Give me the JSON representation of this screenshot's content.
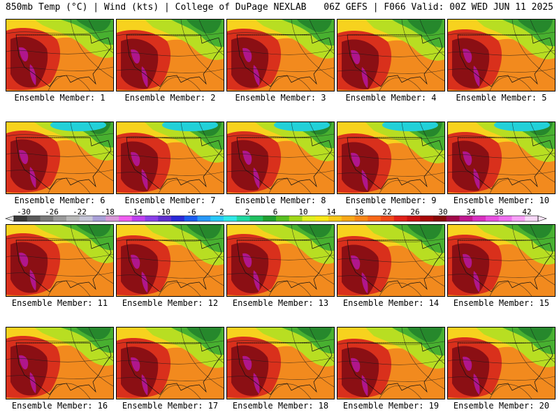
{
  "header": {
    "left": "850mb Temp (°C) | Wind (kts) | College of DuPage NEXLAB",
    "right": "06Z GEFS | F066 Valid: 00Z WED JUN 11 2025"
  },
  "members": [
    {
      "label": "Ensemble Member: 1"
    },
    {
      "label": "Ensemble Member: 2"
    },
    {
      "label": "Ensemble Member: 3"
    },
    {
      "label": "Ensemble Member: 4"
    },
    {
      "label": "Ensemble Member: 5"
    },
    {
      "label": "Ensemble Member: 6"
    },
    {
      "label": "Ensemble Member: 7"
    },
    {
      "label": "Ensemble Member: 8"
    },
    {
      "label": "Ensemble Member: 9"
    },
    {
      "label": "Ensemble Member: 10"
    },
    {
      "label": "Ensemble Member: 11"
    },
    {
      "label": "Ensemble Member: 12"
    },
    {
      "label": "Ensemble Member: 13"
    },
    {
      "label": "Ensemble Member: 14"
    },
    {
      "label": "Ensemble Member: 15"
    },
    {
      "label": "Ensemble Member: 16"
    },
    {
      "label": "Ensemble Member: 17"
    },
    {
      "label": "Ensemble Member: 18"
    },
    {
      "label": "Ensemble Member: 19"
    },
    {
      "label": "Ensemble Member: 20"
    }
  ],
  "colorbar": {
    "labels": [
      "-30",
      "-26",
      "-22",
      "-18",
      "-14",
      "-10",
      "-6",
      "-2",
      "2",
      "6",
      "10",
      "14",
      "18",
      "22",
      "26",
      "30",
      "34",
      "38",
      "42"
    ],
    "colors": [
      "#3a3a3a",
      "#5a5a5a",
      "#7a7a7a",
      "#9a9a9a",
      "#b8b8b8",
      "#c6c6d8",
      "#a9a0d8",
      "#d89ad8",
      "#f05ef0",
      "#c040f0",
      "#8a40e8",
      "#6030d0",
      "#2a2ad8",
      "#1a5cf0",
      "#2898f8",
      "#28c8f8",
      "#30e8e8",
      "#20d8a0",
      "#20c060",
      "#20a030",
      "#58c020",
      "#a0d818",
      "#e0f020",
      "#f8e818",
      "#f8c818",
      "#f8a818",
      "#f88818",
      "#f86818",
      "#f04818",
      "#e02018",
      "#c81010",
      "#a80808",
      "#880808",
      "#a00848",
      "#c01890",
      "#d830c0",
      "#e850e0",
      "#f070f0",
      "#f8a0f8",
      "#f8d8f8"
    ]
  },
  "map_colors": {
    "hot": "#8b0f14",
    "red": "#d9301c",
    "orange": "#f28a1e",
    "yellow": "#f7d21e",
    "lime": "#b8de22",
    "green": "#48b030",
    "dkgreen": "#26882c",
    "cyan": "#22d0d8",
    "magenta": "#b0168c"
  }
}
